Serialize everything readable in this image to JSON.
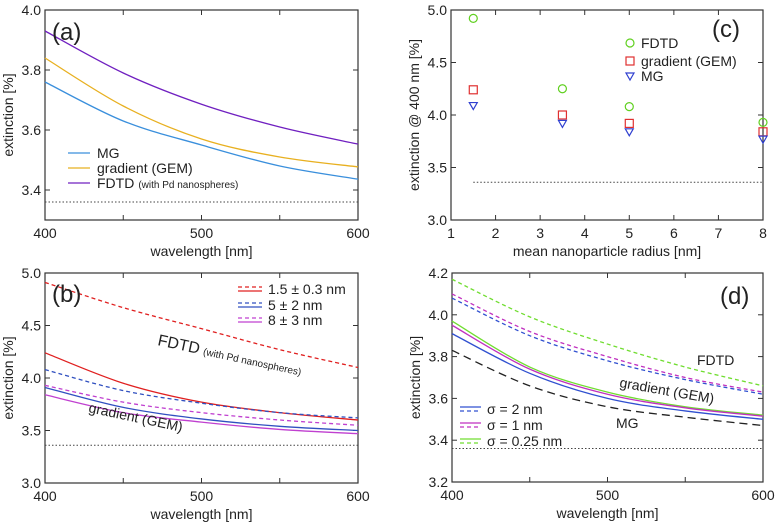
{
  "chart_data": [
    {
      "id": "a",
      "type": "line",
      "panel_label": "(a)",
      "xlabel": "wavelength [nm]",
      "ylabel": "extinction [%]",
      "xlim": [
        400,
        600
      ],
      "ylim": [
        3.3,
        4.0
      ],
      "xticks": [
        400,
        450,
        500,
        550,
        600
      ],
      "xticklabels": [
        "400",
        "",
        "500",
        "",
        "600"
      ],
      "yticks": [
        3.4,
        3.6,
        3.8,
        4.0
      ],
      "yticklabels": [
        "3.4",
        "3.6",
        "3.8",
        "4.0"
      ],
      "baseline": 3.36,
      "x": [
        400,
        450,
        500,
        550,
        600
      ],
      "series": [
        {
          "name": "MG",
          "color": "#3a8fdc",
          "dash": "solid",
          "values": [
            3.76,
            3.63,
            3.55,
            3.48,
            3.436
          ]
        },
        {
          "name": "gradient (GEM)",
          "color": "#e8b020",
          "dash": "solid",
          "values": [
            3.84,
            3.68,
            3.57,
            3.51,
            3.477
          ]
        },
        {
          "name": "FDTD",
          "name_suffix": "(with Pd nanospheres)",
          "color": "#7020c0",
          "dash": "solid",
          "values": [
            3.93,
            3.79,
            3.686,
            3.61,
            3.553
          ]
        }
      ]
    },
    {
      "id": "b",
      "type": "line",
      "panel_label": "(b)",
      "xlabel": "wavelength [nm]",
      "ylabel": "extinction [%]",
      "xlim": [
        400,
        600
      ],
      "ylim": [
        3.0,
        5.0
      ],
      "xticks": [
        400,
        450,
        500,
        550,
        600
      ],
      "xticklabels": [
        "400",
        "",
        "500",
        "",
        "600"
      ],
      "yticks": [
        3.0,
        3.5,
        4.0,
        4.5,
        5.0
      ],
      "yticklabels": [
        "3.0",
        "3.5",
        "4.0",
        "4.5",
        "5.0"
      ],
      "baseline": 3.36,
      "x": [
        400,
        450,
        500,
        550,
        600
      ],
      "legend": [
        "1.5 ± 0.3 nm",
        "5 ± 2 nm",
        "8 ± 3 nm"
      ],
      "annotations": [
        "FDTD",
        "(with Pd nanospheres)",
        "gradient (GEM)"
      ],
      "series": [
        {
          "name": "1.5 ± 0.3 nm FDTD",
          "color": "#e02020",
          "dash": "dashed",
          "values": [
            4.91,
            4.67,
            4.47,
            4.27,
            4.1
          ]
        },
        {
          "name": "1.5 ± 0.3 nm GEM",
          "color": "#e02020",
          "dash": "solid",
          "values": [
            4.24,
            3.95,
            3.77,
            3.67,
            3.6
          ]
        },
        {
          "name": "5 ± 2 nm FDTD",
          "color": "#3050c0",
          "dash": "dashed",
          "values": [
            4.08,
            3.88,
            3.76,
            3.67,
            3.62
          ]
        },
        {
          "name": "5 ± 2 nm GEM",
          "color": "#3050c0",
          "dash": "solid",
          "values": [
            3.91,
            3.72,
            3.61,
            3.54,
            3.5
          ]
        },
        {
          "name": "8 ± 3 nm FDTD",
          "color": "#c040d0",
          "dash": "dashed",
          "values": [
            3.93,
            3.77,
            3.67,
            3.6,
            3.55
          ]
        },
        {
          "name": "8 ± 3 nm GEM",
          "color": "#c040d0",
          "dash": "solid",
          "values": [
            3.84,
            3.67,
            3.58,
            3.51,
            3.47
          ]
        }
      ]
    },
    {
      "id": "c",
      "type": "scatter",
      "panel_label": "(c)",
      "xlabel": "mean nanoparticle radius [nm]",
      "ylabel": "extinction @ 400 nm [%]",
      "xlim": [
        1,
        8
      ],
      "ylim": [
        3.0,
        5.0
      ],
      "xticks": [
        1,
        2,
        3,
        4,
        5,
        6,
        7,
        8
      ],
      "xticklabels": [
        "1",
        "2",
        "3",
        "4",
        "5",
        "6",
        "7",
        "8"
      ],
      "yticks": [
        3.0,
        3.5,
        4.0,
        4.5,
        5.0
      ],
      "yticklabels": [
        "3.0",
        "3.5",
        "4.0",
        "4.5",
        "5.0"
      ],
      "baseline": 3.36,
      "baseline_xrange": [
        1.5,
        8
      ],
      "x": [
        1.5,
        3.5,
        5,
        8
      ],
      "series": [
        {
          "name": "FDTD",
          "color": "#60d020",
          "marker": "circle",
          "values": [
            4.92,
            4.25,
            4.08,
            3.93
          ]
        },
        {
          "name": "gradient (GEM)",
          "color": "#e03030",
          "marker": "square",
          "values": [
            4.24,
            4.0,
            3.92,
            3.84
          ]
        },
        {
          "name": "MG",
          "color": "#3040d0",
          "marker": "triangle-down",
          "values": [
            4.09,
            3.92,
            3.84,
            3.77
          ]
        }
      ]
    },
    {
      "id": "d",
      "type": "line",
      "panel_label": "(d)",
      "xlabel": "wavelength [nm]",
      "ylabel": "extinction [%]",
      "xlim": [
        400,
        600
      ],
      "ylim": [
        3.2,
        4.2
      ],
      "xticks": [
        400,
        450,
        500,
        550,
        600
      ],
      "xticklabels": [
        "400",
        "",
        "500",
        "",
        "600"
      ],
      "yticks": [
        3.2,
        3.4,
        3.6,
        3.8,
        4.0,
        4.2
      ],
      "yticklabels": [
        "3.2",
        "3.4",
        "3.6",
        "3.8",
        "4.0",
        "4.2"
      ],
      "baseline": 3.36,
      "x": [
        400,
        450,
        500,
        550,
        600
      ],
      "legend": [
        "σ = 2 nm",
        "σ = 1 nm",
        "σ = 0.25 nm"
      ],
      "annotations": [
        "FDTD",
        "gradient (GEM)",
        "MG"
      ],
      "series": [
        {
          "name": "σ = 0.25 nm FDTD",
          "color": "#70dd30",
          "dash": "dashed",
          "values": [
            4.17,
            3.99,
            3.86,
            3.75,
            3.66
          ]
        },
        {
          "name": "σ = 1 nm FDTD",
          "color": "#c030c0",
          "dash": "dashed",
          "values": [
            4.1,
            3.92,
            3.8,
            3.7,
            3.63
          ]
        },
        {
          "name": "σ = 2 nm FDTD",
          "color": "#3050d0",
          "dash": "dashed",
          "values": [
            4.08,
            3.9,
            3.78,
            3.69,
            3.62
          ]
        },
        {
          "name": "σ = 0.25 nm GEM",
          "color": "#70dd30",
          "dash": "solid",
          "values": [
            3.97,
            3.75,
            3.63,
            3.56,
            3.52
          ]
        },
        {
          "name": "σ = 1 nm GEM",
          "color": "#c030c0",
          "dash": "solid",
          "values": [
            3.95,
            3.74,
            3.62,
            3.555,
            3.515
          ]
        },
        {
          "name": "σ = 2 nm GEM",
          "color": "#3050d0",
          "dash": "solid",
          "values": [
            3.91,
            3.72,
            3.6,
            3.54,
            3.5
          ]
        },
        {
          "name": "MG",
          "color": "#222222",
          "dash": "longdash",
          "values": [
            3.83,
            3.66,
            3.56,
            3.51,
            3.47
          ]
        }
      ]
    }
  ]
}
